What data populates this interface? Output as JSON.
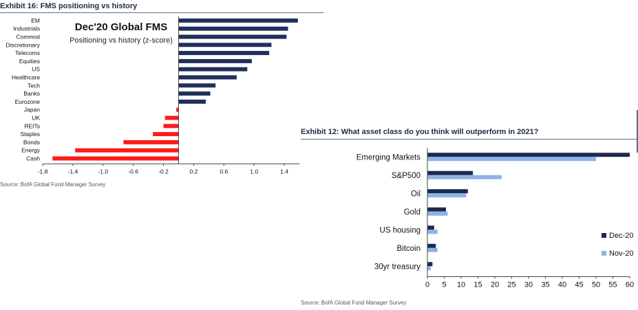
{
  "exhibit16": {
    "header": "Exhibit 16: FMS positioning vs history",
    "source": "Source: BofA Global Fund Manager Survey"
  },
  "exhibit12": {
    "header": "Exhibit 12: What asset class do you think will outperform in 2021?",
    "source": "Source: BofA Global Fund Manager Survey"
  },
  "colors": {
    "positive": "#1f2f5c",
    "negative": "#ff1a1a",
    "dec20": "#1b2a4e",
    "nov20": "#8fb2e6"
  },
  "chart_data": [
    {
      "type": "bar",
      "orientation": "horizontal",
      "title": "Dec'20 Global FMS",
      "subtitle": "Positioning vs history (z-score)",
      "categories": [
        "EM",
        "Industrials",
        "Commod",
        "Discretionary",
        "Telecoms",
        "Equities",
        "US",
        "Healthcare",
        "Tech",
        "Banks",
        "Eurozone",
        "Japan",
        "UK",
        "REITs",
        "Staples",
        "Bonds",
        "Energy",
        "Cash"
      ],
      "values": [
        1.58,
        1.45,
        1.43,
        1.23,
        1.2,
        0.97,
        0.91,
        0.77,
        0.49,
        0.42,
        0.36,
        -0.03,
        -0.18,
        -0.2,
        -0.34,
        -0.73,
        -1.37,
        -1.67
      ],
      "xticks": [
        "-1.8",
        "-1.4",
        "-1.0",
        "-0.6",
        "-0.2",
        "0.2",
        "0.6",
        "1.0",
        "1.4"
      ],
      "xlim": [
        -1.8,
        1.6
      ],
      "grid": false,
      "legend": "none"
    },
    {
      "type": "bar",
      "orientation": "horizontal",
      "categories": [
        "Emerging Markets",
        "S&P500",
        "Oil",
        "Gold",
        "US housing",
        "Bitcoin",
        "30yr treasury"
      ],
      "series": [
        {
          "name": "Dec-20",
          "values": [
            60,
            13.5,
            12,
            5.5,
            2,
            2.5,
            1.5
          ]
        },
        {
          "name": "Nov-20",
          "values": [
            50,
            22,
            11.5,
            6,
            3,
            3,
            1
          ]
        }
      ],
      "xticks": [
        "0",
        "5",
        "10",
        "15",
        "20",
        "25",
        "30",
        "35",
        "40",
        "45",
        "50",
        "55",
        "60"
      ],
      "xlim": [
        0,
        60
      ],
      "grid": false,
      "legend": "right"
    }
  ]
}
